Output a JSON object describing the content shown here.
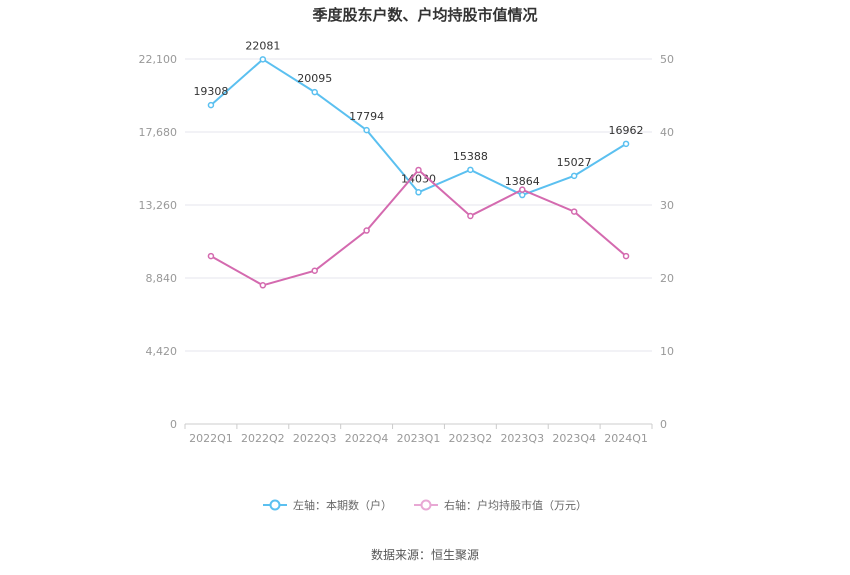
{
  "chart_data": {
    "type": "line",
    "title": "季度股东户数、户均持股市值情况",
    "categories": [
      "2022Q1",
      "2022Q2",
      "2022Q3",
      "2022Q4",
      "2023Q1",
      "2023Q2",
      "2023Q3",
      "2023Q4",
      "2024Q1"
    ],
    "left_axis": {
      "ticks": [
        "0",
        "4,420",
        "8,840",
        "13,260",
        "17,680",
        "22,100"
      ],
      "min": 0,
      "max": 22100
    },
    "right_axis": {
      "ticks": [
        "0",
        "10",
        "20",
        "30",
        "40",
        "50"
      ],
      "min": 0,
      "max": 50
    },
    "series": [
      {
        "name": "左轴：本期数（户）",
        "axis": "left",
        "color": "#5bc0f0",
        "values": [
          19308,
          22081,
          20095,
          17794,
          14030,
          15388,
          13864,
          15027,
          16962
        ],
        "labels": [
          "19308",
          "22081",
          "20095",
          "17794",
          "14030",
          "15388",
          "13864",
          "15027",
          "16962"
        ]
      },
      {
        "name": "右轴：户均持股市值（万元）",
        "axis": "right",
        "color": "#d46aaf",
        "values": [
          23.0,
          19.0,
          21.0,
          26.5,
          34.8,
          28.5,
          32.1,
          29.1,
          23.0
        ]
      }
    ],
    "grid": true,
    "legend_position": "bottom"
  },
  "source": "数据来源：恒生聚源"
}
